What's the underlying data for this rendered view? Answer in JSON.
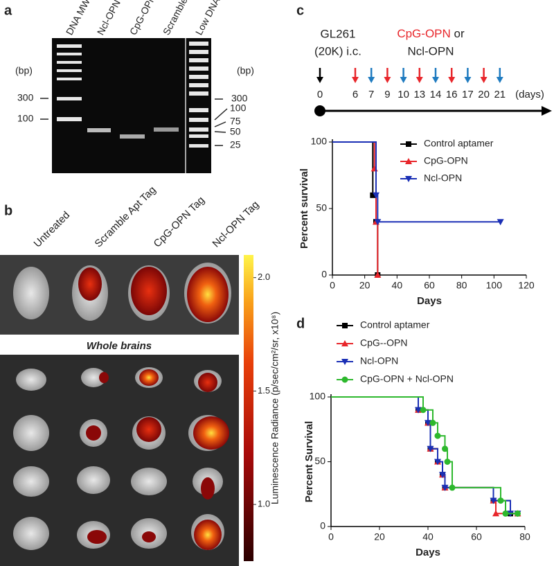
{
  "panel_labels": [
    "a",
    "b",
    "c",
    "d"
  ],
  "gel": {
    "lanes": [
      "DNA MW",
      "Ncl-OPN Tag",
      "CpG-OPN Tag",
      "Scramble Apt Tag",
      "Low DNA MW"
    ],
    "left_unit": "(bp)",
    "left_markers": [
      "300",
      "100"
    ],
    "right_unit": "(bp)",
    "right_markers": [
      "300",
      "100",
      "75",
      "50",
      "25"
    ]
  },
  "imaging": {
    "columns": [
      "Untreated",
      "Scramble Apt Tag",
      "CpG-OPN Tag",
      "Ncl-OPN Tag"
    ],
    "section_label": "Whole brains",
    "colorbar": {
      "label": "Luminescence Radiance (p/sec/cm²/sr, x10⁸)",
      "lim": [
        0.75,
        2.1
      ],
      "ticks": [
        {
          "value": 1,
          "label": "1.0"
        },
        {
          "value": 1.5,
          "label": "1.5"
        },
        {
          "value": 2,
          "label": "2.0"
        }
      ]
    }
  },
  "schedule": {
    "start": [
      "GL261",
      "(20K) i.c."
    ],
    "treatment_a": "CpG-OPN",
    "or": "or",
    "treatment_b": "Ncl-OPN",
    "days": [
      0,
      6,
      7,
      9,
      10,
      13,
      14,
      16,
      17,
      20,
      21
    ],
    "unit": "(days)",
    "day_colors": [
      "#000000",
      "#e8262b",
      "#1f7bc0",
      "#e8262b",
      "#1f7bc0",
      "#e8262b",
      "#1f7bc0",
      "#e8262b",
      "#1f7bc0",
      "#e8262b",
      "#1f7bc0"
    ]
  },
  "chart_data": [
    {
      "type": "line",
      "drawstyle": "steps-post",
      "xlabel": "Days",
      "ylabel": "Percent survival",
      "xlim": [
        0,
        120
      ],
      "xticks": [
        0,
        20,
        40,
        60,
        80,
        100,
        120
      ],
      "ylim": [
        0,
        100
      ],
      "yticks": [
        0,
        50,
        100
      ],
      "legend": "upper right",
      "series": [
        {
          "name": "Control aptamer",
          "color": "#000000",
          "marker": "square",
          "x": [
            0,
            25,
            27,
            28
          ],
          "values": [
            100,
            60,
            40,
            0
          ]
        },
        {
          "name": "CpG-OPN",
          "color": "#e8262b",
          "marker": "triangle",
          "x": [
            0,
            26,
            27,
            28
          ],
          "values": [
            100,
            80,
            40,
            0
          ]
        },
        {
          "name": "Ncl-OPN",
          "color": "#1a2fb5",
          "marker": "triangle-down",
          "x": [
            0,
            27,
            28,
            104
          ],
          "values": [
            100,
            60,
            40,
            40
          ]
        }
      ]
    },
    {
      "type": "line",
      "drawstyle": "steps-post",
      "xlabel": "Days",
      "ylabel": "Percent Survival",
      "xlim": [
        0,
        80
      ],
      "xticks": [
        0,
        20,
        40,
        60,
        80
      ],
      "ylim": [
        0,
        100
      ],
      "yticks": [
        0,
        50,
        100
      ],
      "legend": "top",
      "series": [
        {
          "name": "Control aptamer",
          "color": "#000000",
          "marker": "square",
          "x": [
            0,
            36,
            40,
            41,
            44,
            46,
            47,
            67,
            74,
            77
          ],
          "values": [
            100,
            90,
            80,
            60,
            50,
            40,
            30,
            20,
            10,
            10
          ]
        },
        {
          "name": "CpG--OPN",
          "color": "#e8262b",
          "marker": "triangle",
          "x": [
            0,
            36,
            40,
            41,
            44,
            46,
            47,
            67,
            68,
            77
          ],
          "values": [
            100,
            90,
            80,
            60,
            50,
            40,
            30,
            20,
            10,
            10
          ]
        },
        {
          "name": "Ncl-OPN",
          "color": "#1a2fb5",
          "marker": "triangle-down",
          "x": [
            0,
            36,
            40,
            41,
            44,
            46,
            47,
            67,
            74,
            77
          ],
          "values": [
            100,
            90,
            80,
            60,
            50,
            40,
            30,
            20,
            10,
            10
          ]
        },
        {
          "name": "CpG-OPN + Ncl-OPN",
          "color": "#2db82d",
          "marker": "circle",
          "x": [
            0,
            38,
            42,
            44,
            47,
            48,
            50,
            70,
            72,
            77
          ],
          "values": [
            100,
            90,
            80,
            70,
            60,
            50,
            30,
            20,
            10,
            10
          ]
        }
      ]
    }
  ]
}
